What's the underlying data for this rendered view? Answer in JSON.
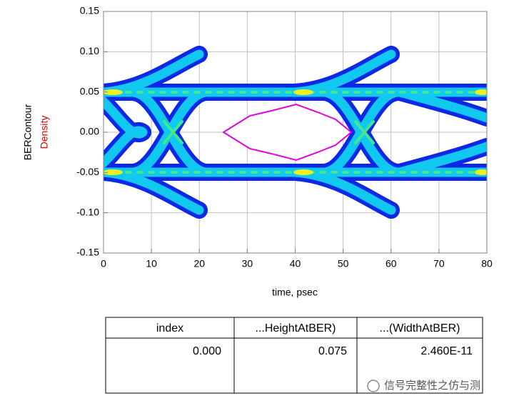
{
  "chart_data": {
    "type": "eye-density",
    "ylabel": "BERContour",
    "ylabel_second": "Density",
    "xlabel": "time, psec",
    "xlim": [
      0,
      80
    ],
    "xticks": [
      0,
      10,
      20,
      30,
      40,
      50,
      60,
      70,
      80
    ],
    "ylim": [
      -0.15,
      0.15
    ],
    "yticks": [
      -0.15,
      {
        "value": -0.1,
        "label": "-0.10"
      },
      -0.05,
      {
        "value": 0,
        "label": "0.00"
      },
      0.05,
      {
        "value": 0.1,
        "label": "0.10"
      },
      0.15
    ],
    "grid": true
  },
  "table": {
    "headers": [
      "index",
      "...HeightAtBER)",
      "...(WidthAtBER)"
    ],
    "rows": [
      [
        "0.000",
        "0.075",
        "2.460E-11"
      ]
    ]
  },
  "watermark": "信号完整性之仿与测"
}
